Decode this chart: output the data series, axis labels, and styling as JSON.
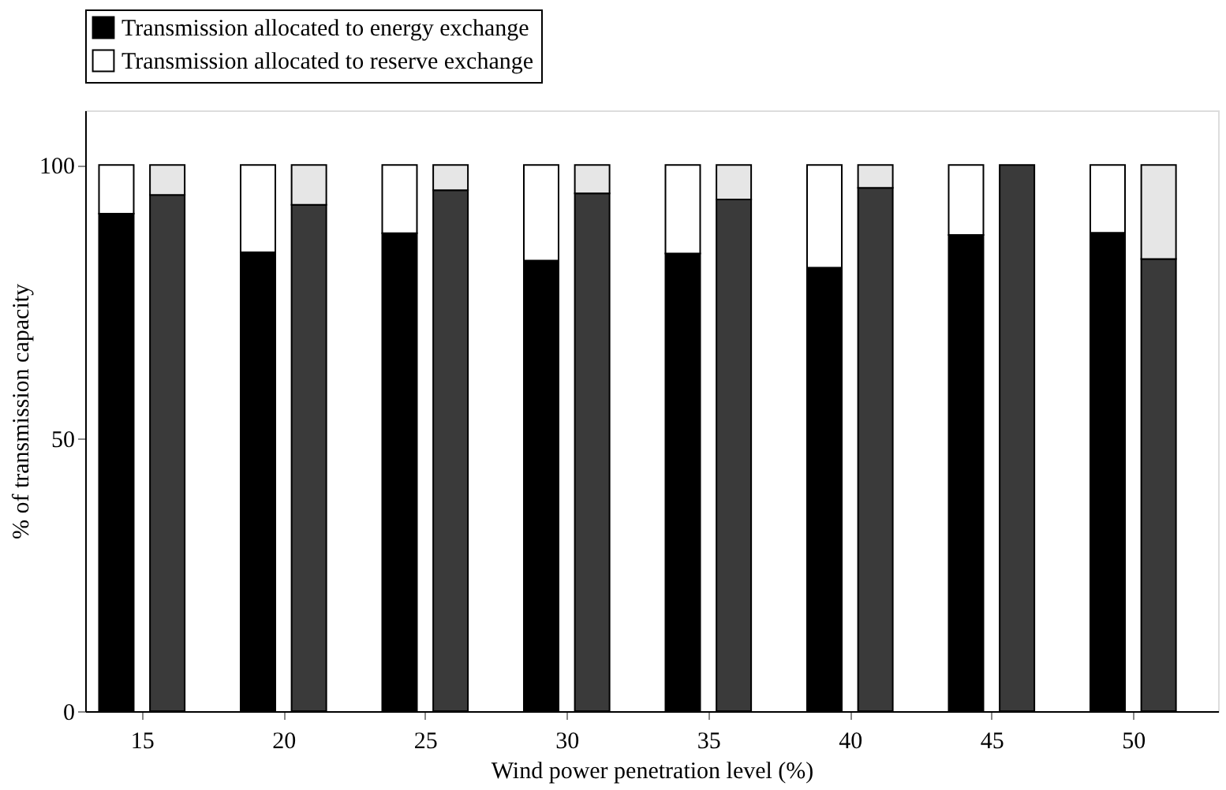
{
  "chart_data": {
    "type": "bar",
    "stacked": true,
    "xlabel": "Wind power penetration level (%)",
    "ylabel": "% of transmission capacity",
    "xlim": [
      13,
      53
    ],
    "xticks": [
      15,
      20,
      25,
      30,
      35,
      40,
      45,
      50
    ],
    "ylim": [
      0,
      110
    ],
    "yticks": [
      0,
      50,
      100
    ],
    "grid": false,
    "legend": "top",
    "x": [
      14.1,
      15.9,
      19.1,
      20.9,
      24.1,
      25.9,
      29.1,
      30.9,
      34.1,
      35.9,
      39.1,
      40.9,
      44.1,
      45.9,
      49.1,
      50.9
    ],
    "series": [
      {
        "name": "Transmission allocated to energy exchange",
        "color": "#000000",
        "values": [
          91.1,
          null,
          84.0,
          null,
          87.5,
          null,
          82.5,
          null,
          83.8,
          null,
          81.2,
          null,
          87.2,
          null,
          87.6,
          null
        ]
      },
      {
        "name": "Transmission allocated to reserve exchange",
        "color": "#ffffff",
        "values": [
          8.9,
          null,
          16.0,
          null,
          12.5,
          null,
          17.5,
          null,
          16.2,
          null,
          18.8,
          null,
          12.8,
          null,
          12.4,
          null
        ]
      },
      {
        "color": "#3a3a3a",
        "values": [
          null,
          94.5,
          null,
          92.7,
          null,
          95.4,
          null,
          94.8,
          null,
          93.7,
          null,
          95.8,
          null,
          100,
          null,
          82.8
        ]
      },
      {
        "color": "#e6e6e6",
        "values": [
          null,
          5.5,
          null,
          7.3,
          null,
          4.6,
          null,
          5.2,
          null,
          6.3,
          null,
          4.2,
          null,
          null,
          null,
          17.2
        ]
      }
    ]
  }
}
